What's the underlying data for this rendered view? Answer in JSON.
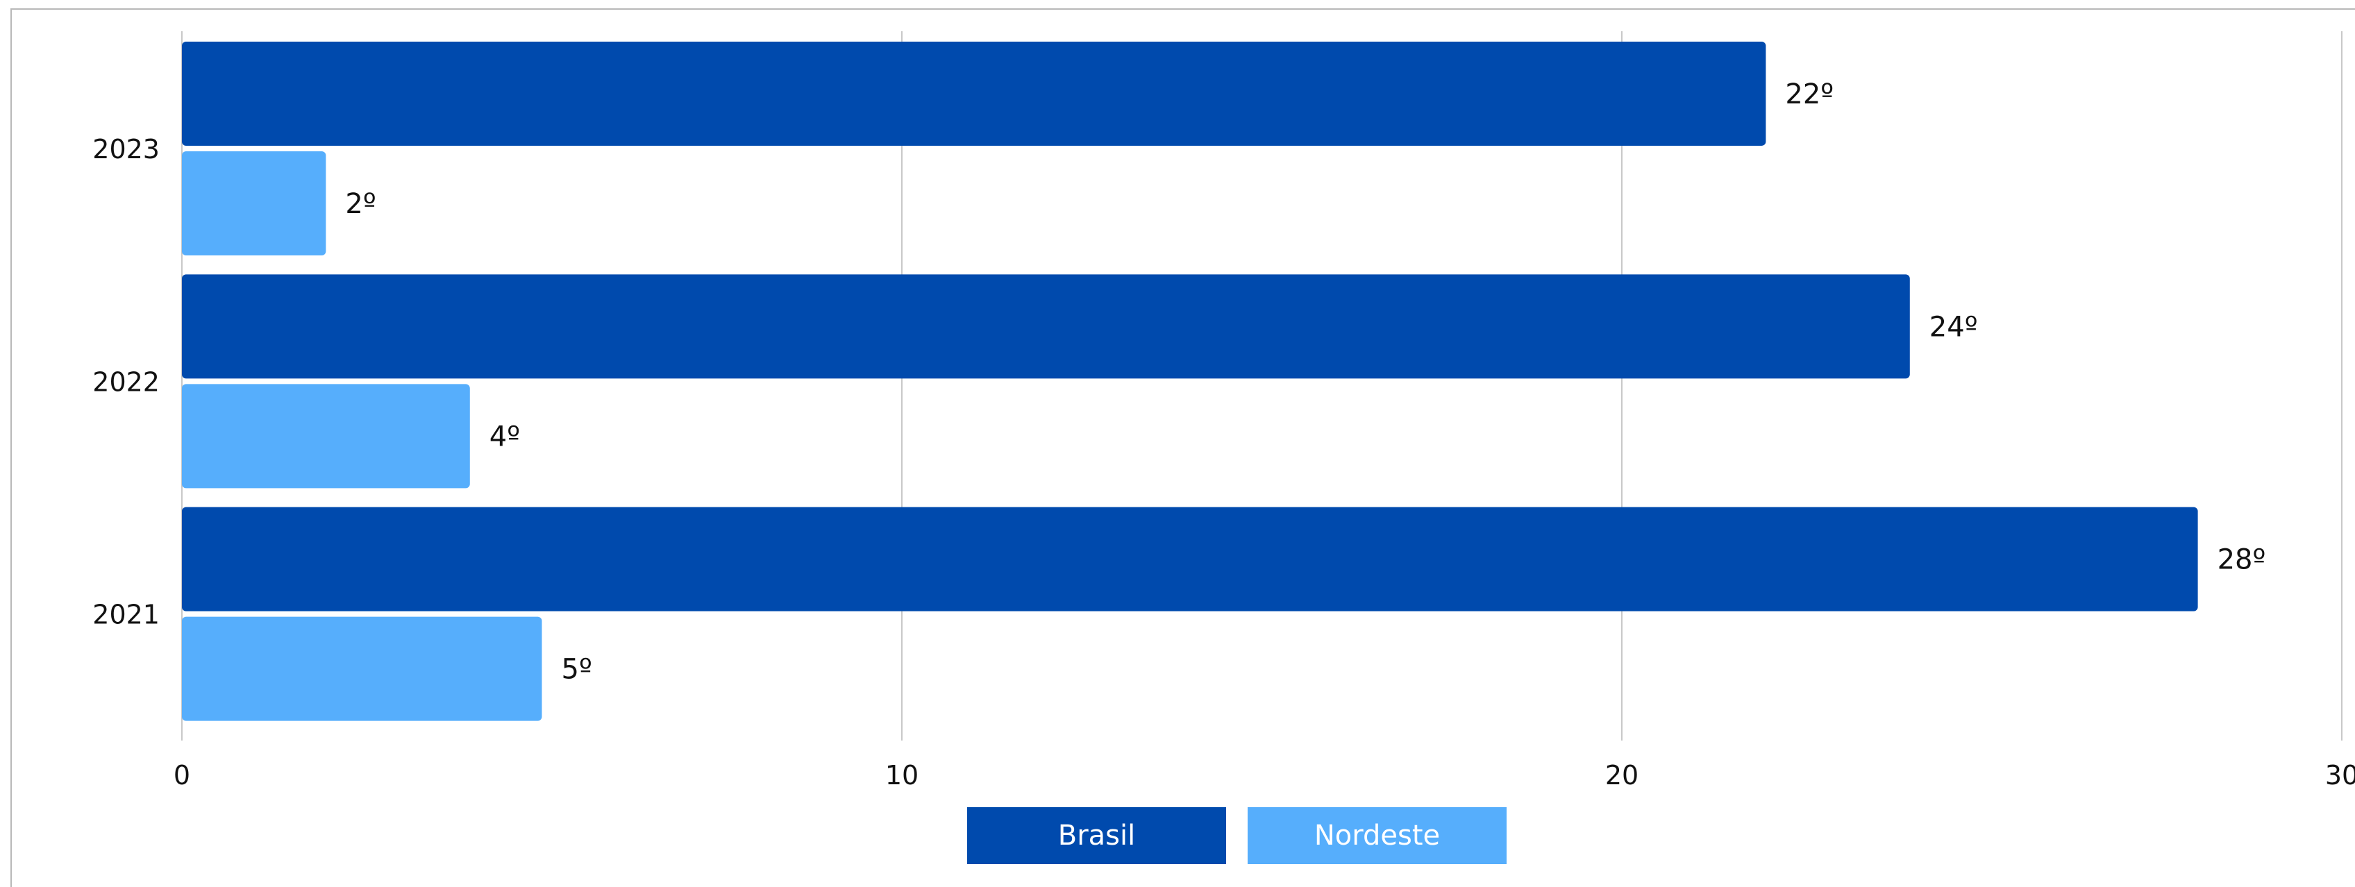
{
  "chart_data": {
    "type": "bar",
    "orientation": "horizontal",
    "categories": [
      "2023",
      "2022",
      "2021"
    ],
    "series": [
      {
        "name": "Brasil",
        "values": [
          22,
          24,
          28
        ],
        "labels": [
          "22º",
          "24º",
          "28º"
        ],
        "color": "#004aad"
      },
      {
        "name": "Nordeste",
        "values": [
          2,
          4,
          5
        ],
        "labels": [
          "2º",
          "4º",
          "5º"
        ],
        "color": "#56aefc"
      }
    ],
    "xlim": [
      0,
      30
    ],
    "xticks": [
      "0",
      "10",
      "20",
      "30"
    ],
    "grid": "vertical",
    "legend": "bottom-center",
    "title": "",
    "xlabel": "",
    "ylabel": ""
  }
}
